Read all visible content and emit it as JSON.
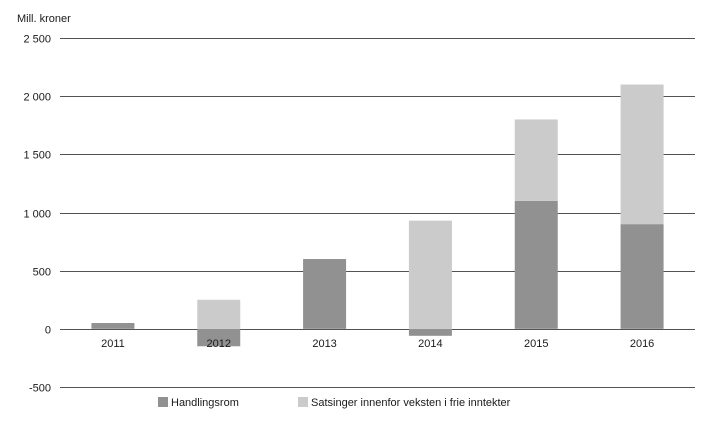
{
  "chart_data": {
    "type": "bar",
    "stacked": true,
    "ylabel": "Mill. kroner",
    "categories": [
      "2011",
      "2012",
      "2013",
      "2014",
      "2015",
      "2016"
    ],
    "ylim": [
      -500,
      2500
    ],
    "yticks": [
      -500,
      0,
      500,
      1000,
      1500,
      2000,
      2500
    ],
    "ytick_labels": [
      "-500",
      "0",
      "500",
      "1 000",
      "1 500",
      "2 000",
      "2 500"
    ],
    "grid": true,
    "legend_position": "bottom",
    "series": [
      {
        "name": "Handlingsrom",
        "color": "#919191",
        "values": [
          50,
          -150,
          600,
          -60,
          1100,
          900
        ]
      },
      {
        "name": "Satsinger innenfor veksten i frie inntekter",
        "color": "#cbcbcb",
        "values": [
          0,
          250,
          0,
          930,
          700,
          1200
        ]
      }
    ]
  }
}
